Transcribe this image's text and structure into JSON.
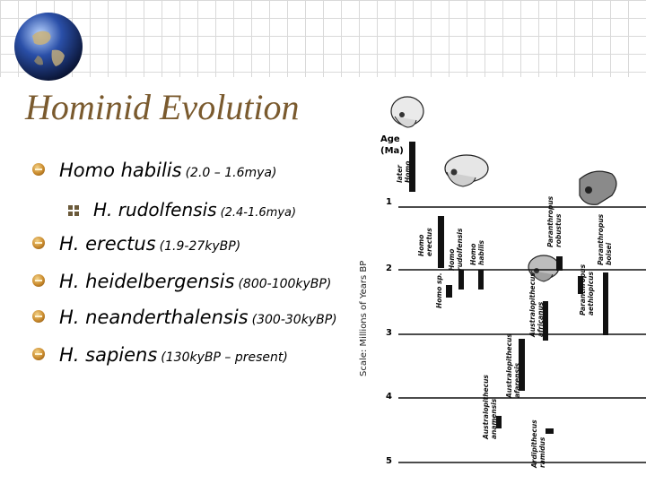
{
  "slide": {
    "title": "Hominid Evolution",
    "bullets": [
      {
        "name": "Homo habilis",
        "range": "(2.0 – 1.6mya)"
      },
      {
        "name": "H. rudolfensis",
        "range": "(2.4-1.6mya)"
      },
      {
        "name": "H. erectus",
        "range": "(1.9-27kyBP)"
      },
      {
        "name": "H. heidelbergensis",
        "range": "(800-100kyBP)"
      },
      {
        "name": "H. neanderthalensis",
        "range": "(300-30kyBP)"
      },
      {
        "name": "H. sapiens",
        "range": "(130kyBP – present)"
      }
    ]
  },
  "figure": {
    "side_label": "Scale: Millions of Years BP",
    "age_label_line1": "Age",
    "age_label_line2": "(Ma)",
    "ticks": [
      "1",
      "2",
      "3",
      "4",
      "5"
    ],
    "taxa": [
      {
        "line1": "later",
        "line2": "Homo"
      },
      {
        "line1": "Homo",
        "line2": "erectus"
      },
      {
        "line1": "Homo",
        "line2": "rudolfensis"
      },
      {
        "line1": "Homo",
        "line2": "habilis"
      },
      {
        "line1": "Paranthropus",
        "line2": "robustus"
      },
      {
        "line1": "Paranthropus",
        "line2": "boisei"
      },
      {
        "line1": "Homo sp.",
        "line2": ""
      },
      {
        "line1": "Paranthropus",
        "line2": "aethiopicus"
      },
      {
        "line1": "Australopithecus",
        "line2": "africanus"
      },
      {
        "line1": "Australopithecus",
        "line2": "afarensis"
      },
      {
        "line1": "Australopithecus",
        "line2": "anamensis"
      },
      {
        "line1": "Ardipithecus",
        "line2": "ramidus"
      }
    ]
  }
}
